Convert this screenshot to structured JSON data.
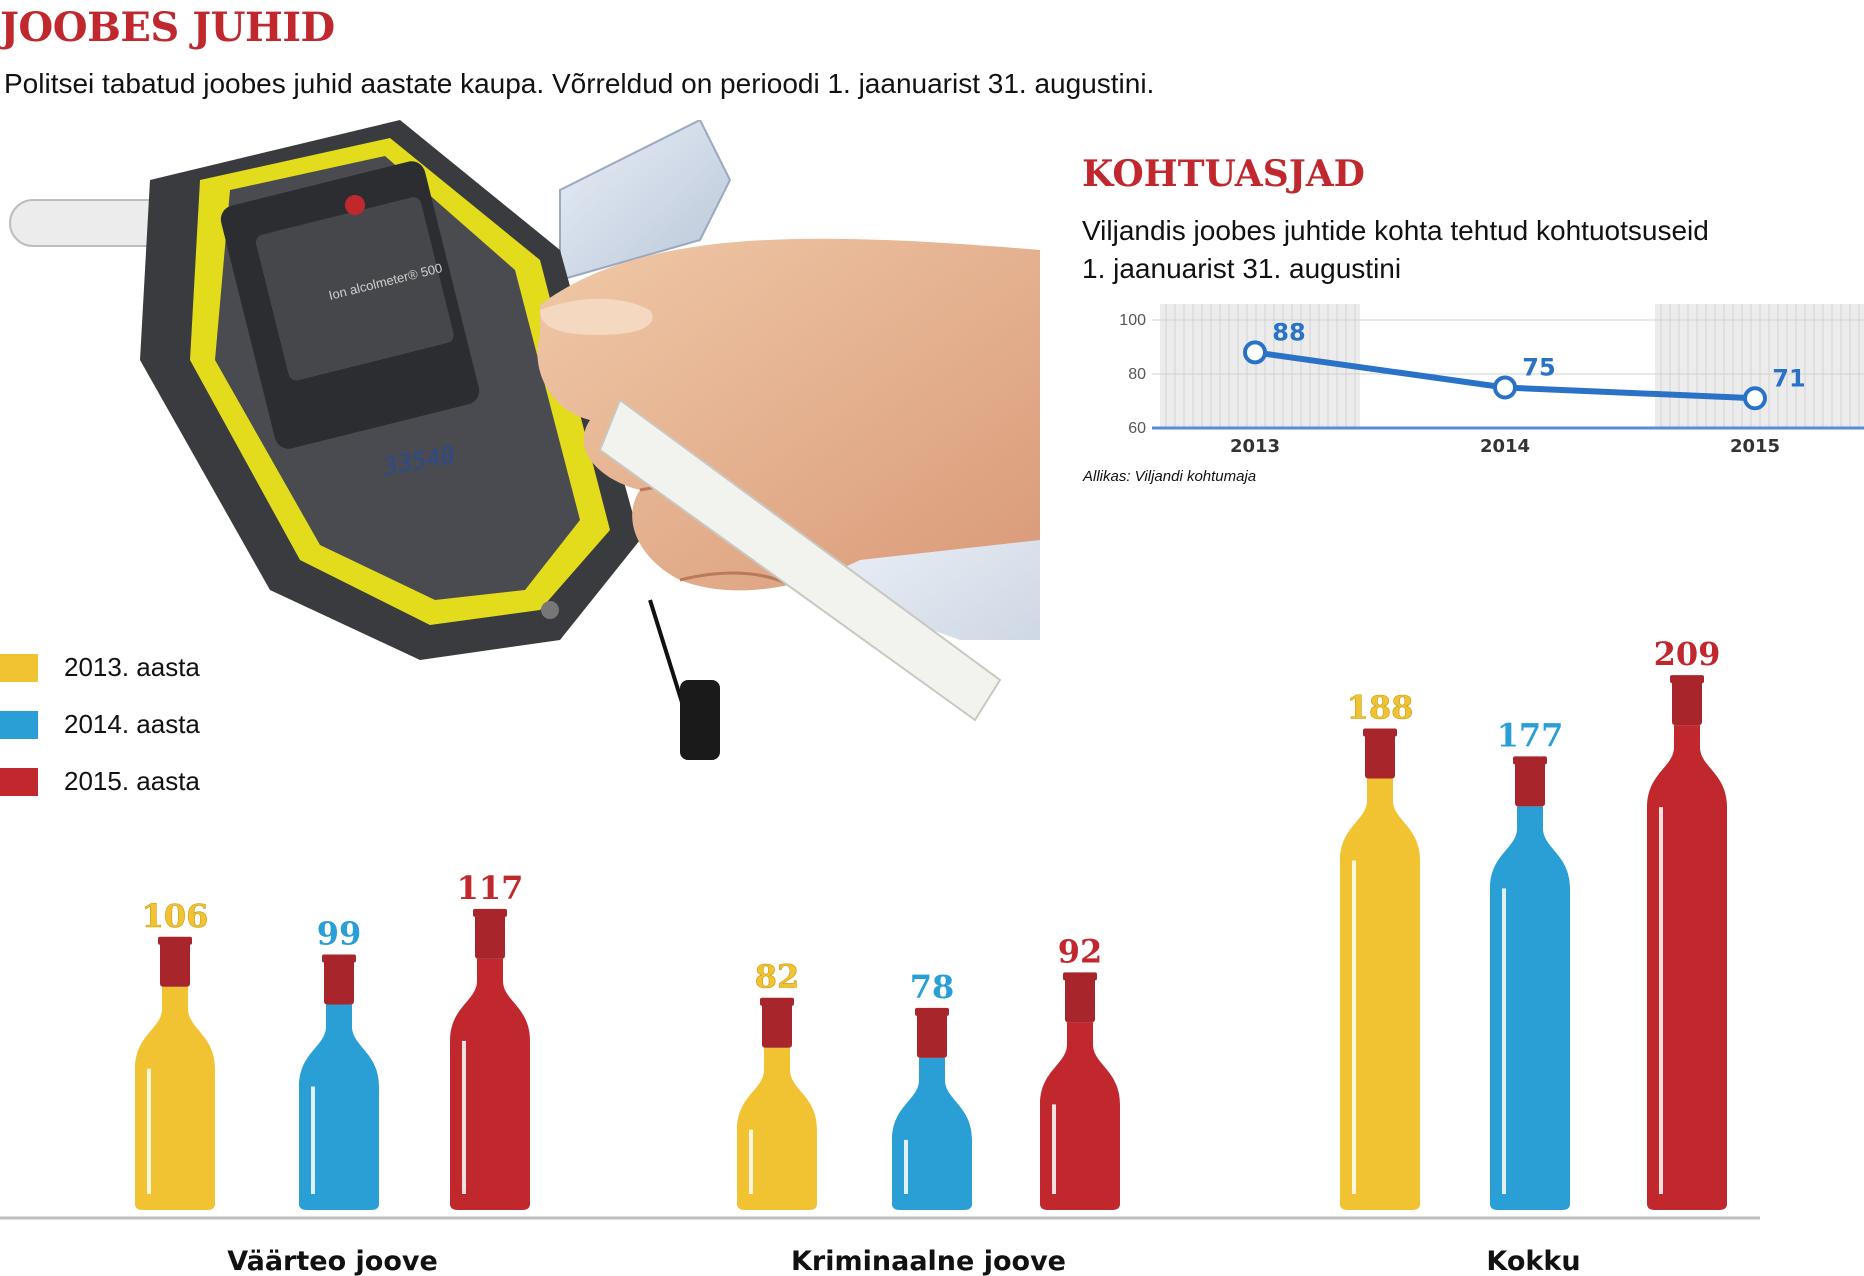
{
  "header": {
    "title": "JOOBES JUHID",
    "subtitle": "Politsei tabatud joobes juhid aastate kaupa. Võrreldud on perioodi 1. jaanuarist 31. augustini."
  },
  "photo": {
    "device_label": "Ion alcolmeter® 500",
    "handwritten_number": "33540"
  },
  "legend": [
    {
      "label": "2013. aasta",
      "color": "#f1c232"
    },
    {
      "label": "2014. aasta",
      "color": "#2a9fd6"
    },
    {
      "label": "2015. aasta",
      "color": "#c0282d"
    }
  ],
  "court_cases": {
    "title": "KOHTUASJAD",
    "subtitle_line1": "Viljandis joobes juhtide kohta tehtud kohtuotsuseid",
    "subtitle_line2": "1. jaanuarist 31. augustini",
    "source": "Allikas: Viljandi kohtumaja"
  },
  "chart_data": [
    {
      "type": "line",
      "x": [
        "2013",
        "2014",
        "2015"
      ],
      "series": [
        {
          "values": [
            88,
            75,
            71
          ]
        }
      ],
      "ylim": [
        60,
        100
      ],
      "yticks": [
        60,
        80,
        100
      ],
      "data_labels": [
        "88",
        "75",
        "71"
      ],
      "line_color": "#2a72c8"
    },
    {
      "type": "bar",
      "categories": [
        "Väärteo joove",
        "Kriminaalne joove",
        "Kokku"
      ],
      "series": [
        {
          "name": "2013. aasta",
          "values": [
            106,
            82,
            188
          ],
          "labels": [
            "106",
            "82",
            "188"
          ]
        },
        {
          "name": "2014. aasta",
          "values": [
            99,
            78,
            177
          ],
          "labels": [
            "99",
            "78",
            "177"
          ]
        },
        {
          "name": "2015. aasta",
          "values": [
            117,
            92,
            209
          ],
          "labels": [
            "117",
            "92",
            "209"
          ]
        }
      ]
    }
  ]
}
